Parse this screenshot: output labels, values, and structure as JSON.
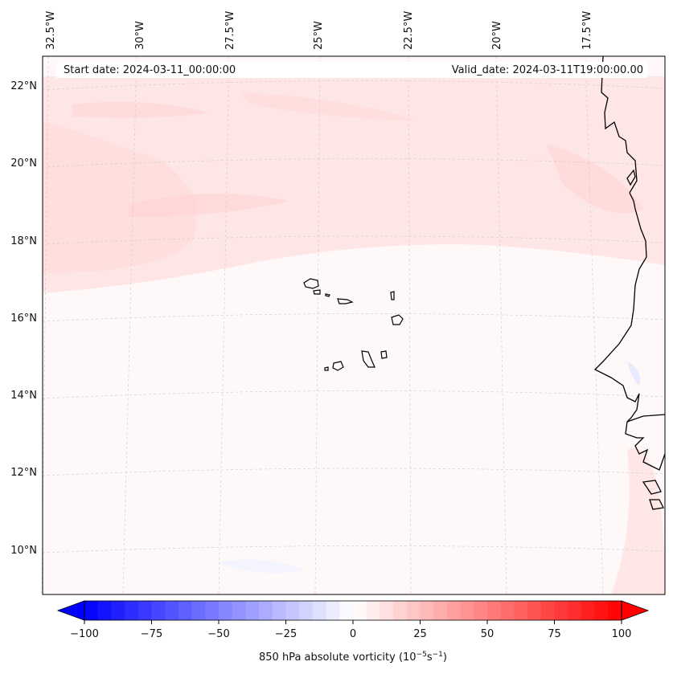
{
  "map": {
    "start_date_label": "Start date: 2024-03-11_00:00:00",
    "valid_date_label": "Valid_date: 2024-03-11T19:00:00.00",
    "longitude_ticks": [
      "32.5°W",
      "30°W",
      "27.5°W",
      "25°W",
      "22.5°W",
      "20°W",
      "17.5°W"
    ],
    "latitude_ticks": [
      "22°N",
      "20°N",
      "18°N",
      "16°N",
      "14°N",
      "12°N",
      "10°N"
    ],
    "colorbar": {
      "label_main": "850 hPa absolute vorticity (10",
      "label_exp1": "−5",
      "label_mid": "s",
      "label_exp2": "−1",
      "label_end": ")",
      "ticks": [
        "−100",
        "−75",
        "−50",
        "−25",
        "0",
        "25",
        "50",
        "75",
        "100"
      ],
      "min": -100,
      "max": 100,
      "low_color": "#0000ff",
      "mid_color": "#ffffff",
      "high_color": "#ff0000"
    },
    "colors": {
      "background_field": "#fff6f6",
      "positive_tint": "#ffe0e0",
      "coastline": "#000000",
      "gridline": "#c8c8c8"
    }
  }
}
